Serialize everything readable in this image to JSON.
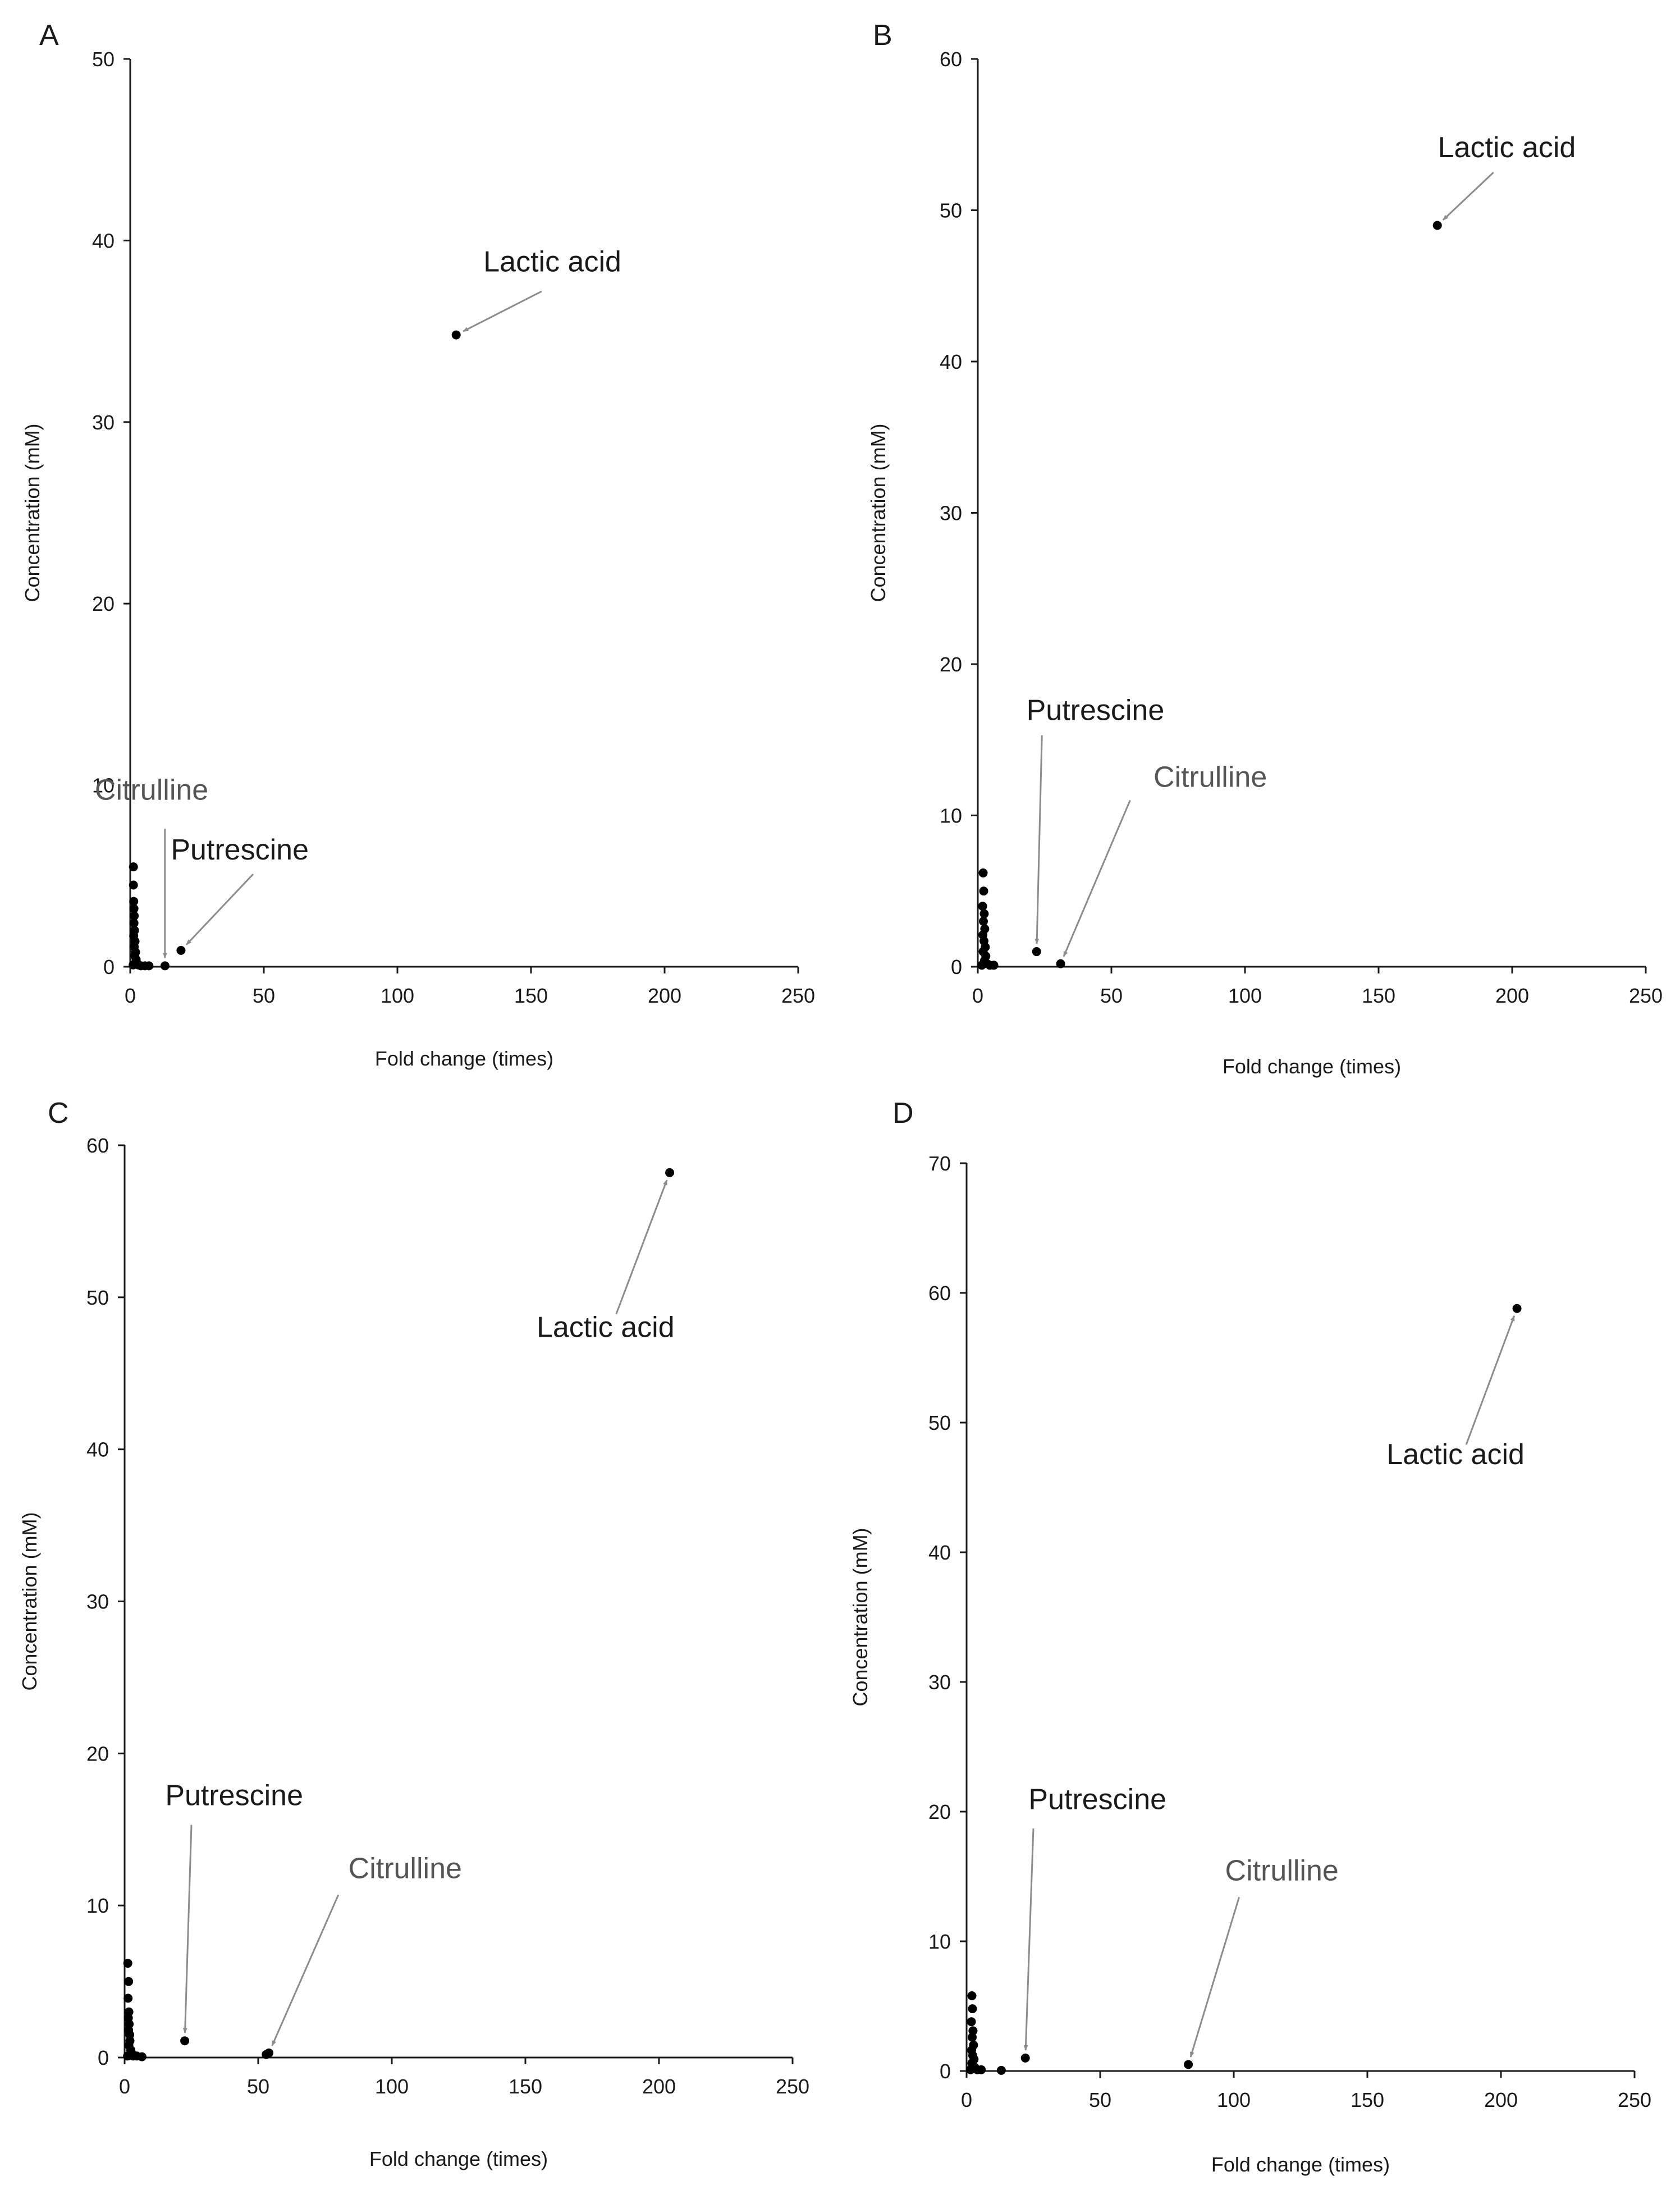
{
  "chart_data": [
    {
      "panel_label": "A",
      "type": "scatter",
      "xlabel": "Fold change (times)",
      "ylabel": "Concentration (mM)",
      "xlim": [
        0,
        250
      ],
      "ylim": [
        0,
        50
      ],
      "xticks": [
        0,
        50,
        100,
        150,
        200,
        250
      ],
      "yticks": [
        0,
        10,
        20,
        30,
        40,
        50
      ],
      "points": [
        {
          "x": 1.2,
          "y": 5.5
        },
        {
          "x": 1.2,
          "y": 4.5
        },
        {
          "x": 1.3,
          "y": 3.6
        },
        {
          "x": 1.4,
          "y": 3.2
        },
        {
          "x": 1.5,
          "y": 2.8
        },
        {
          "x": 1.4,
          "y": 2.4
        },
        {
          "x": 1.6,
          "y": 2.0
        },
        {
          "x": 1.3,
          "y": 1.7
        },
        {
          "x": 1.8,
          "y": 1.4
        },
        {
          "x": 1.5,
          "y": 1.1
        },
        {
          "x": 2.0,
          "y": 0.8
        },
        {
          "x": 1.7,
          "y": 0.6
        },
        {
          "x": 2.2,
          "y": 0.4
        },
        {
          "x": 2.5,
          "y": 0.2
        },
        {
          "x": 1.1,
          "y": 0.1
        },
        {
          "x": 3.0,
          "y": 0.1
        },
        {
          "x": 4.0,
          "y": 0.05
        },
        {
          "x": 5.5,
          "y": 0.05
        },
        {
          "x": 7.0,
          "y": 0.05
        },
        {
          "x": 13.0,
          "y": 0.05
        },
        {
          "x": 19.0,
          "y": 0.9
        },
        {
          "x": 122.0,
          "y": 34.8
        }
      ],
      "annotations": [
        {
          "text": "Lactic acid",
          "target": [
            122.0,
            34.8
          ],
          "text_pos": [
            158,
            38.3
          ],
          "from": [
            154,
            37.2
          ],
          "color": "#1a1a1a"
        },
        {
          "text": "Citrulline",
          "target": [
            13.0,
            0.05
          ],
          "text_pos": [
            8,
            9.2
          ],
          "from": [
            13,
            7.6
          ],
          "color": "#555555"
        },
        {
          "text": "Putrescine",
          "target": [
            19.0,
            0.9
          ],
          "text_pos": [
            41,
            5.9
          ],
          "from": [
            46,
            5.1
          ],
          "color": "#1a1a1a"
        }
      ]
    },
    {
      "panel_label": "B",
      "type": "scatter",
      "xlabel": "Fold change (times)",
      "ylabel": "Concentration (mM)",
      "xlim": [
        0,
        250
      ],
      "ylim": [
        0,
        60
      ],
      "xticks": [
        0,
        50,
        100,
        150,
        200,
        250
      ],
      "yticks": [
        0,
        10,
        20,
        30,
        40,
        50,
        60
      ],
      "points": [
        {
          "x": 2.0,
          "y": 6.2
        },
        {
          "x": 2.2,
          "y": 5.0
        },
        {
          "x": 1.8,
          "y": 4.0
        },
        {
          "x": 2.4,
          "y": 3.5
        },
        {
          "x": 2.1,
          "y": 3.0
        },
        {
          "x": 2.6,
          "y": 2.5
        },
        {
          "x": 1.9,
          "y": 2.1
        },
        {
          "x": 2.3,
          "y": 1.7
        },
        {
          "x": 2.8,
          "y": 1.3
        },
        {
          "x": 2.0,
          "y": 1.0
        },
        {
          "x": 3.0,
          "y": 0.7
        },
        {
          "x": 2.5,
          "y": 0.4
        },
        {
          "x": 3.5,
          "y": 0.2
        },
        {
          "x": 1.5,
          "y": 0.1
        },
        {
          "x": 4.5,
          "y": 0.1
        },
        {
          "x": 6.0,
          "y": 0.1
        },
        {
          "x": 22.0,
          "y": 1.0
        },
        {
          "x": 31.0,
          "y": 0.2
        },
        {
          "x": 172.0,
          "y": 49.0
        }
      ],
      "annotations": [
        {
          "text": "Lactic acid",
          "target": [
            172.0,
            49.0
          ],
          "text_pos": [
            198,
            53.5
          ],
          "from": [
            193,
            52.5
          ],
          "color": "#1a1a1a"
        },
        {
          "text": "Putrescine",
          "target": [
            22.0,
            1.0
          ],
          "text_pos": [
            44,
            16.3
          ],
          "from": [
            24,
            15.3
          ],
          "color": "#1a1a1a"
        },
        {
          "text": "Citrulline",
          "target": [
            31.0,
            0.2
          ],
          "text_pos": [
            87,
            11.9
          ],
          "from": [
            57,
            11.0
          ],
          "color": "#555555"
        }
      ]
    },
    {
      "panel_label": "C",
      "type": "scatter",
      "xlabel": "Fold change (times)",
      "ylabel": "Concentration (mM)",
      "xlim": [
        0,
        250
      ],
      "ylim": [
        0,
        60
      ],
      "xticks": [
        0,
        50,
        100,
        150,
        200,
        250
      ],
      "yticks": [
        0,
        10,
        20,
        30,
        40,
        50,
        60
      ],
      "points": [
        {
          "x": 1.2,
          "y": 6.2
        },
        {
          "x": 1.5,
          "y": 5.0
        },
        {
          "x": 1.3,
          "y": 3.9
        },
        {
          "x": 1.6,
          "y": 3.0
        },
        {
          "x": 1.4,
          "y": 2.6
        },
        {
          "x": 1.7,
          "y": 2.2
        },
        {
          "x": 1.5,
          "y": 1.8
        },
        {
          "x": 1.9,
          "y": 1.5
        },
        {
          "x": 2.0,
          "y": 1.1
        },
        {
          "x": 1.6,
          "y": 0.8
        },
        {
          "x": 2.3,
          "y": 0.5
        },
        {
          "x": 2.6,
          "y": 0.3
        },
        {
          "x": 1.1,
          "y": 0.1
        },
        {
          "x": 3.2,
          "y": 0.1
        },
        {
          "x": 4.5,
          "y": 0.1
        },
        {
          "x": 6.5,
          "y": 0.05
        },
        {
          "x": 22.5,
          "y": 1.1
        },
        {
          "x": 53.0,
          "y": 0.2
        },
        {
          "x": 54.0,
          "y": 0.3
        },
        {
          "x": 204.0,
          "y": 58.2
        }
      ],
      "annotations": [
        {
          "text": "Lactic acid",
          "target": [
            204.0,
            58.2
          ],
          "text_pos": [
            180,
            47.4
          ],
          "from": [
            184,
            48.9
          ],
          "color": "#1a1a1a"
        },
        {
          "text": "Putrescine",
          "target": [
            22.5,
            1.1
          ],
          "text_pos": [
            41,
            16.6
          ],
          "from": [
            25,
            15.3
          ],
          "color": "#1a1a1a"
        },
        {
          "text": "Citrulline",
          "target": [
            54.0,
            0.3
          ],
          "text_pos": [
            105,
            11.8
          ],
          "from": [
            80,
            10.7
          ],
          "color": "#555555"
        }
      ]
    },
    {
      "panel_label": "D",
      "type": "scatter",
      "xlabel": "Fold change (times)",
      "ylabel": "Concentration (mM)",
      "xlim": [
        0,
        250
      ],
      "ylim": [
        0,
        70
      ],
      "xticks": [
        0,
        50,
        100,
        150,
        200,
        250
      ],
      "yticks": [
        0,
        10,
        20,
        30,
        40,
        50,
        60,
        70
      ],
      "points": [
        {
          "x": 2.0,
          "y": 5.8
        },
        {
          "x": 2.2,
          "y": 4.8
        },
        {
          "x": 1.8,
          "y": 3.8
        },
        {
          "x": 2.4,
          "y": 3.1
        },
        {
          "x": 2.1,
          "y": 2.6
        },
        {
          "x": 2.6,
          "y": 2.0
        },
        {
          "x": 1.9,
          "y": 1.6
        },
        {
          "x": 2.3,
          "y": 1.2
        },
        {
          "x": 2.8,
          "y": 0.9
        },
        {
          "x": 2.0,
          "y": 0.6
        },
        {
          "x": 3.0,
          "y": 0.3
        },
        {
          "x": 1.5,
          "y": 0.1
        },
        {
          "x": 4.0,
          "y": 0.1
        },
        {
          "x": 5.5,
          "y": 0.1
        },
        {
          "x": 13.0,
          "y": 0.05
        },
        {
          "x": 22.0,
          "y": 1.0
        },
        {
          "x": 83.0,
          "y": 0.5
        },
        {
          "x": 206.0,
          "y": 58.8
        }
      ],
      "annotations": [
        {
          "text": "Lactic acid",
          "target": [
            206.0,
            58.8
          ],
          "text_pos": [
            183,
            46.8
          ],
          "from": [
            187,
            48.3
          ],
          "color": "#1a1a1a"
        },
        {
          "text": "Putrescine",
          "target": [
            22.0,
            1.0
          ],
          "text_pos": [
            49,
            20.2
          ],
          "from": [
            25,
            18.7
          ],
          "color": "#1a1a1a"
        },
        {
          "text": "Citrulline",
          "target": [
            83.0,
            0.5
          ],
          "text_pos": [
            118,
            14.7
          ],
          "from": [
            102,
            13.4
          ],
          "color": "#555555"
        }
      ]
    }
  ]
}
